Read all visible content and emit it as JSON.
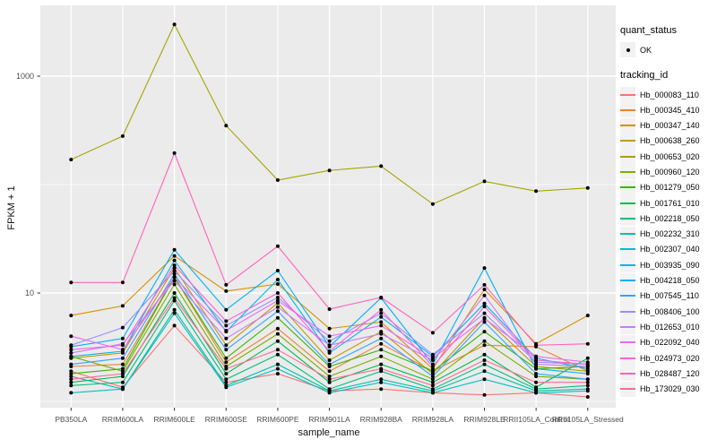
{
  "figure": {
    "y_axis": {
      "label": "FPKM + 1",
      "major_ticks": [
        {
          "label": "1000",
          "value": 1000
        },
        {
          "label": "10",
          "value": 10
        }
      ],
      "minor_break_values": [
        100,
        1
      ]
    },
    "x_axis": {
      "label": "sample_name"
    },
    "legend": {
      "quant_status": {
        "title": "quant_status",
        "items": [
          {
            "label": "OK",
            "symbol": "point"
          }
        ]
      },
      "tracking_id": {
        "title": "tracking_id"
      }
    },
    "panel_bg": "#EBEBEB",
    "grid_color": "#FFFFFF",
    "point_color": "#000000"
  },
  "chart_data": {
    "type": "line",
    "title": "",
    "xlabel": "sample_name",
    "ylabel": "FPKM + 1",
    "yscale": "log10",
    "ylim": [
      0.87,
      4500
    ],
    "y_breaks": [
      10,
      1000
    ],
    "y_minor_breaks": [
      1,
      100
    ],
    "grid": "white major/minor on gray panel",
    "legend_position": "right",
    "marker": "black point (quant_status = OK)",
    "x": [
      "PB350LA",
      "RRIM600LA",
      "RRIM600LE",
      "RRIM600SE",
      "RRIM600PE",
      "RRIM901LA",
      "RRIM928BA",
      "RRIM928LA",
      "RRIM928LE",
      "RRII105LA_Control",
      "RRII105LA_Stressed"
    ],
    "series": [
      {
        "name": "Hb_000083_110",
        "color": "#F8766D",
        "values": [
          1.9,
          1.35,
          5.0,
          1.5,
          1.8,
          1.25,
          1.3,
          1.2,
          1.15,
          1.2,
          1.1
        ]
      },
      {
        "name": "Hb_000345_410",
        "color": "#EA8331",
        "values": [
          2.1,
          2.2,
          14,
          2.3,
          4.7,
          1.9,
          3.4,
          1.9,
          3.3,
          3.2,
          1.9
        ]
      },
      {
        "name": "Hb_000347_140",
        "color": "#D89000",
        "values": [
          6.2,
          7.6,
          22,
          10.4,
          12.1,
          4.7,
          5.4,
          2.0,
          10.8,
          3.4,
          6.2
        ]
      },
      {
        "name": "Hb_000638_260",
        "color": "#C09B00",
        "values": [
          2.5,
          2.8,
          17,
          3.3,
          8.1,
          2.4,
          4.4,
          1.8,
          5.9,
          2.1,
          1.9
        ]
      },
      {
        "name": "Hb_000653_020",
        "color": "#A3A500",
        "values": [
          170,
          280,
          3000,
          350,
          110,
          135,
          148,
          66,
          107,
          87,
          93
        ]
      },
      {
        "name": "Hb_000960_120",
        "color": "#7CAE00",
        "values": [
          2.6,
          1.9,
          12,
          2.1,
          4.2,
          1.7,
          2.6,
          1.6,
          3.6,
          1.7,
          1.6
        ]
      },
      {
        "name": "Hb_001279_050",
        "color": "#39B600",
        "values": [
          1.8,
          2.0,
          14,
          2.5,
          5.9,
          2.1,
          3.0,
          1.9,
          4.4,
          2.0,
          2.1
        ]
      },
      {
        "name": "Hb_001761_010",
        "color": "#00BB4E",
        "values": [
          1.5,
          1.7,
          10,
          1.8,
          3.6,
          1.5,
          2.2,
          1.5,
          2.7,
          1.35,
          2.5
        ]
      },
      {
        "name": "Hb_002218_050",
        "color": "#00BF7D",
        "values": [
          1.4,
          1.5,
          8.5,
          1.6,
          2.7,
          1.3,
          1.9,
          1.3,
          2.2,
          1.3,
          1.4
        ]
      },
      {
        "name": "Hb_002232_310",
        "color": "#00C1A3",
        "values": [
          1.7,
          1.3,
          7.0,
          1.4,
          2.2,
          1.25,
          1.6,
          1.25,
          1.9,
          1.25,
          1.3
        ]
      },
      {
        "name": "Hb_002307_040",
        "color": "#00BFC4",
        "values": [
          1.2,
          1.3,
          6.5,
          1.35,
          2.0,
          1.2,
          1.5,
          1.2,
          1.6,
          1.2,
          1.25
        ]
      },
      {
        "name": "Hb_003935_090",
        "color": "#00BAE0",
        "values": [
          2.6,
          2.9,
          20,
          4.4,
          13.3,
          2.8,
          6.0,
          2.6,
          8.0,
          2.5,
          2.0
        ]
      },
      {
        "name": "Hb_004218_050",
        "color": "#00B0F6",
        "values": [
          3.2,
          3.8,
          25,
          7.0,
          16.1,
          3.2,
          9.0,
          2.2,
          17,
          2.0,
          1.8
        ]
      },
      {
        "name": "Hb_007545_110",
        "color": "#35A2FF",
        "values": [
          2.2,
          2.5,
          15,
          3.0,
          6.8,
          2.2,
          3.8,
          1.7,
          5.4,
          1.8,
          1.6
        ]
      },
      {
        "name": "Hb_008406_100",
        "color": "#9590FF",
        "values": [
          3.3,
          4.8,
          16,
          5.0,
          9.1,
          3.6,
          6.5,
          2.7,
          6.5,
          2.3,
          2.2
        ]
      },
      {
        "name": "Hb_012653_010",
        "color": "#C77CFF",
        "values": [
          2.8,
          3.4,
          13,
          3.8,
          7.4,
          3.3,
          4.2,
          2.4,
          9.5,
          2.2,
          2.1
        ]
      },
      {
        "name": "Hb_022092_040",
        "color": "#E76BF3",
        "values": [
          4.0,
          3.0,
          14,
          4.5,
          8.5,
          4.0,
          5.0,
          2.5,
          5.8,
          2.6,
          2.3
        ]
      },
      {
        "name": "Hb_024973_020",
        "color": "#FA62DB",
        "values": [
          3.0,
          3.3,
          18,
          5.5,
          10,
          2.9,
          7.0,
          2.1,
          7.5,
          2.4,
          2.2
        ]
      },
      {
        "name": "Hb_028487_120",
        "color": "#FF62BC",
        "values": [
          12.5,
          12.5,
          195,
          11.9,
          27,
          7.1,
          9.1,
          4.3,
          11.9,
          3.3,
          3.4
        ]
      },
      {
        "name": "Hb_173029_030",
        "color": "#FF6A98",
        "values": [
          1.6,
          1.8,
          9.0,
          2.0,
          3.0,
          1.6,
          2.0,
          1.4,
          2.4,
          1.5,
          1.5
        ]
      }
    ]
  }
}
